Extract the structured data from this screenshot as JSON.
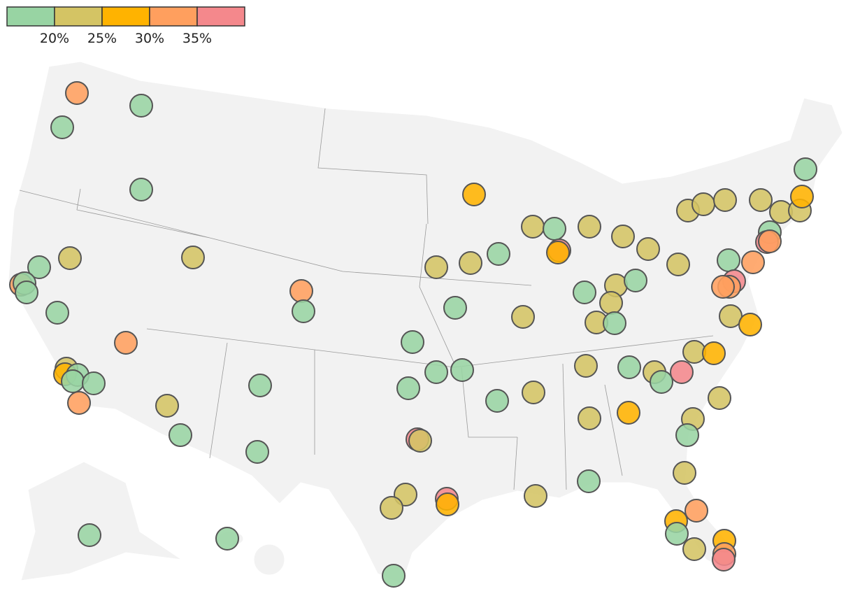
{
  "legend": {
    "colors": [
      "#98d4a3",
      "#d4c464",
      "#ffb300",
      "#ff9f5e",
      "#f4888c"
    ],
    "ticks": [
      {
        "value": 20,
        "label": "20%"
      },
      {
        "value": 25,
        "label": "25%"
      },
      {
        "value": 30,
        "label": "30%"
      },
      {
        "value": 35,
        "label": "35%"
      }
    ]
  },
  "points": {
    "values": [
      32.5,
      17.5,
      17.5,
      17.5,
      17.5,
      22.5,
      32.5,
      17.5,
      17.5,
      17.5,
      22.5,
      32.5,
      17.5,
      32.5,
      22.5,
      27.5,
      17.5,
      17.5,
      17.5,
      32.5,
      22.5,
      17.5,
      17.5,
      17.5,
      17.5,
      17.5,
      27.5,
      22.5,
      17.5,
      37.5,
      27.5,
      22.5,
      22.5,
      22.5,
      17.5,
      22.5,
      22.5,
      17.5,
      22.5,
      17.5,
      22.5,
      17.5,
      22.5,
      22.5,
      17.5,
      17.5,
      17.5,
      17.5,
      17.5,
      17.5,
      22.5,
      22.5,
      17.5,
      22.5,
      17.5,
      37.5,
      22.5,
      27.5,
      22.5,
      22.5,
      17.5,
      22.5,
      27.5,
      37.5,
      22.5,
      22.5,
      22.5,
      37.5,
      27.5,
      22.5,
      17.5,
      22.5,
      32.5,
      27.5,
      17.5,
      22.5,
      27.5,
      32.5,
      37.5,
      17.5,
      22.5,
      22.5,
      22.5,
      22.5,
      22.5,
      22.5,
      27.5,
      17.5,
      17.5,
      37.5,
      32.5,
      22.5,
      17.5,
      32.5,
      37.5,
      32.5,
      32.5,
      22.5,
      27.5
    ]
  }
}
